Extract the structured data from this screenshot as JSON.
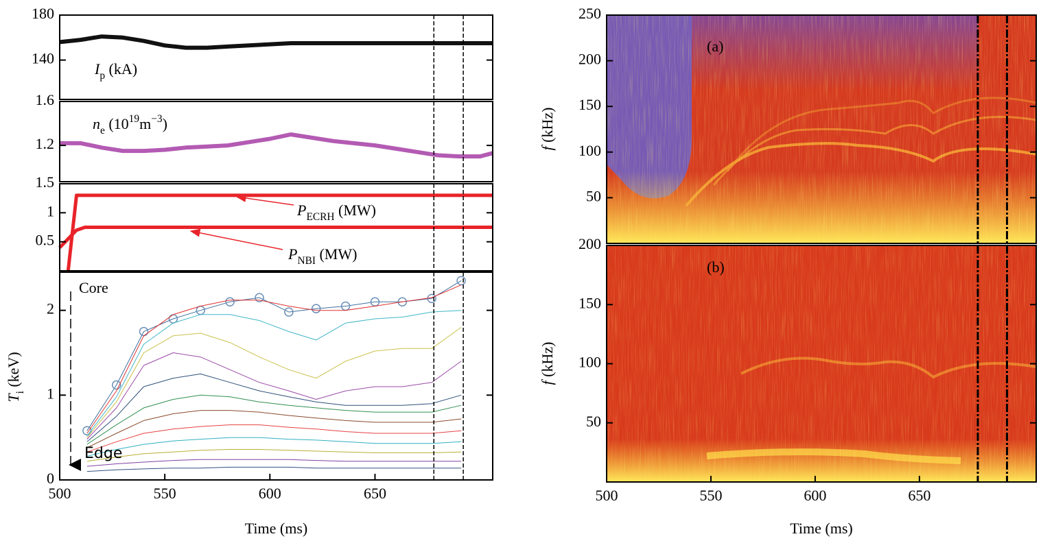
{
  "chart_data": [
    {
      "type": "line",
      "label": [
        {
          "text": "I",
          "italic": true
        },
        {
          "text": "p",
          "sub": true
        },
        {
          "text": " (kA)"
        }
      ],
      "x": [
        500,
        510,
        520,
        530,
        540,
        550,
        560,
        570,
        580,
        590,
        600,
        610,
        620,
        630,
        640,
        650,
        660,
        670,
        680,
        690,
        700,
        706
      ],
      "xlim": [
        500,
        706
      ],
      "ylim": [
        105,
        180
      ],
      "yticks": [
        140,
        180
      ],
      "vlines": [
        678,
        692
      ],
      "line_width": 6,
      "series": [
        {
          "color": "#111111",
          "values": [
            156,
            158,
            161,
            160,
            157,
            153,
            151,
            151,
            152,
            153,
            154,
            155,
            155,
            155,
            155,
            155,
            155,
            155,
            155,
            155,
            155,
            155
          ]
        }
      ]
    },
    {
      "type": "line",
      "label": [
        {
          "text": "n",
          "italic": true
        },
        {
          "text": "e",
          "sub": true
        },
        {
          "text": " (10"
        },
        {
          "text": "19",
          "sup": true
        },
        {
          "text": "m"
        },
        {
          "text": "−3",
          "sup": true
        },
        {
          "text": ")"
        }
      ],
      "x": [
        500,
        510,
        520,
        530,
        540,
        550,
        560,
        570,
        580,
        590,
        600,
        610,
        620,
        630,
        640,
        650,
        660,
        670,
        680,
        690,
        700,
        706
      ],
      "xlim": [
        500,
        706
      ],
      "ylim": [
        0.87,
        1.6
      ],
      "yticks": [
        1.2,
        1.6
      ],
      "vlines": [
        678,
        692
      ],
      "line_width": 6,
      "series": [
        {
          "color": "#b35bb3",
          "values": [
            1.22,
            1.22,
            1.18,
            1.15,
            1.15,
            1.16,
            1.18,
            1.19,
            1.2,
            1.23,
            1.26,
            1.3,
            1.27,
            1.24,
            1.22,
            1.2,
            1.17,
            1.14,
            1.11,
            1.1,
            1.1,
            1.13
          ]
        }
      ]
    },
    {
      "type": "line",
      "x": [
        500,
        504,
        508,
        512,
        706
      ],
      "xlim": [
        500,
        706
      ],
      "ylim": [
        0,
        1.5
      ],
      "yticks": [
        0.5,
        1,
        1.5
      ],
      "vlines": [
        678,
        692
      ],
      "line_width": 5,
      "series": [
        {
          "color": "#e8242a",
          "label": [
            {
              "text": "P",
              "italic": true
            },
            {
              "text": "ECRH",
              "sub": true
            },
            {
              "text": " (MW)"
            }
          ],
          "values": [
            null,
            0,
            1.3,
            1.3,
            1.3
          ]
        },
        {
          "color": "#e8242a",
          "label": [
            {
              "text": "P",
              "italic": true
            },
            {
              "text": "NBI",
              "sub": true
            },
            {
              "text": " (MW)"
            }
          ],
          "values": [
            0.4,
            0.55,
            0.7,
            0.75,
            0.75
          ]
        }
      ]
    },
    {
      "type": "line",
      "x": [
        513,
        527,
        540,
        554,
        567,
        581,
        595,
        609,
        622,
        636,
        650,
        663,
        677,
        691
      ],
      "xlim": [
        500,
        706
      ],
      "ylim": [
        0,
        2.45
      ],
      "xticks": [
        500,
        550,
        600,
        650
      ],
      "yticks": [
        0,
        1,
        2
      ],
      "vlines": [
        678,
        692
      ],
      "line_width": 1,
      "xlabel": "Time (ms)",
      "ylabel": [
        {
          "text": "T",
          "italic": true
        },
        {
          "text": "i",
          "sub": true
        },
        {
          "text": " (keV)"
        }
      ],
      "annotations": [
        "Core",
        "Edge"
      ],
      "series": [
        {
          "color": "#3d6f9e",
          "marker": "circle",
          "values": [
            0.58,
            1.12,
            1.75,
            1.9,
            2.0,
            2.1,
            2.15,
            1.98,
            2.02,
            2.05,
            2.1,
            2.1,
            2.14,
            2.35
          ]
        },
        {
          "color": "#e03030",
          "values": [
            0.55,
            1.05,
            1.7,
            1.95,
            2.05,
            2.12,
            2.12,
            2.05,
            2.0,
            2.0,
            2.05,
            2.1,
            2.15,
            2.3
          ]
        },
        {
          "color": "#3fb6c8",
          "values": [
            0.52,
            0.98,
            1.6,
            1.85,
            1.95,
            1.95,
            1.88,
            1.75,
            1.65,
            1.85,
            1.9,
            1.92,
            1.98,
            2.0
          ]
        },
        {
          "color": "#c9c04a",
          "values": [
            0.5,
            0.92,
            1.5,
            1.7,
            1.73,
            1.62,
            1.45,
            1.3,
            1.2,
            1.4,
            1.52,
            1.55,
            1.55,
            1.8
          ]
        },
        {
          "color": "#9b4aa8",
          "values": [
            0.48,
            0.85,
            1.35,
            1.5,
            1.45,
            1.3,
            1.15,
            1.05,
            0.95,
            1.05,
            1.1,
            1.1,
            1.15,
            1.4
          ]
        },
        {
          "color": "#2c4f7a",
          "values": [
            0.45,
            0.75,
            1.1,
            1.2,
            1.25,
            1.15,
            1.05,
            0.98,
            0.92,
            0.88,
            0.88,
            0.88,
            0.9,
            1.0
          ]
        },
        {
          "color": "#2f8f4f",
          "values": [
            0.42,
            0.65,
            0.85,
            0.95,
            1.0,
            0.98,
            0.92,
            0.88,
            0.85,
            0.82,
            0.8,
            0.8,
            0.8,
            0.88
          ]
        },
        {
          "color": "#8a4a2a",
          "values": [
            0.38,
            0.55,
            0.7,
            0.78,
            0.82,
            0.82,
            0.8,
            0.76,
            0.73,
            0.7,
            0.68,
            0.68,
            0.68,
            0.72
          ]
        },
        {
          "color": "#e84040",
          "values": [
            0.33,
            0.45,
            0.55,
            0.6,
            0.63,
            0.65,
            0.65,
            0.62,
            0.6,
            0.57,
            0.55,
            0.55,
            0.55,
            0.58
          ]
        },
        {
          "color": "#30b0c0",
          "values": [
            0.28,
            0.36,
            0.42,
            0.46,
            0.48,
            0.5,
            0.5,
            0.48,
            0.47,
            0.45,
            0.43,
            0.43,
            0.43,
            0.45
          ]
        },
        {
          "color": "#b8b030",
          "values": [
            0.22,
            0.27,
            0.31,
            0.33,
            0.35,
            0.36,
            0.36,
            0.35,
            0.34,
            0.33,
            0.32,
            0.32,
            0.32,
            0.33
          ]
        },
        {
          "color": "#8040a0",
          "values": [
            0.16,
            0.19,
            0.21,
            0.23,
            0.24,
            0.24,
            0.24,
            0.24,
            0.23,
            0.22,
            0.22,
            0.22,
            0.22,
            0.22
          ]
        },
        {
          "color": "#305080",
          "values": [
            0.1,
            0.12,
            0.13,
            0.14,
            0.14,
            0.15,
            0.15,
            0.15,
            0.14,
            0.14,
            0.14,
            0.14,
            0.14,
            0.14
          ]
        }
      ]
    },
    {
      "type": "spectrogram",
      "panel_label": "(a)",
      "xlim": [
        500,
        706
      ],
      "ylim": [
        0,
        250
      ],
      "yticks": [
        50,
        100,
        150,
        200,
        250
      ],
      "vlines": [
        678,
        692
      ],
      "ylabel": [
        {
          "text": "f",
          "italic": true
        },
        {
          "text": " (kHz)"
        }
      ]
    },
    {
      "type": "spectrogram",
      "panel_label": "(b)",
      "xlim": [
        500,
        706
      ],
      "ylim": [
        0,
        200
      ],
      "xticks": [
        500,
        550,
        600,
        650
      ],
      "yticks": [
        50,
        100,
        150,
        200
      ],
      "vlines": [
        678,
        692
      ],
      "xlabel": "Time (ms)",
      "ylabel": [
        {
          "text": "f",
          "italic": true
        },
        {
          "text": " (kHz)"
        }
      ]
    }
  ]
}
